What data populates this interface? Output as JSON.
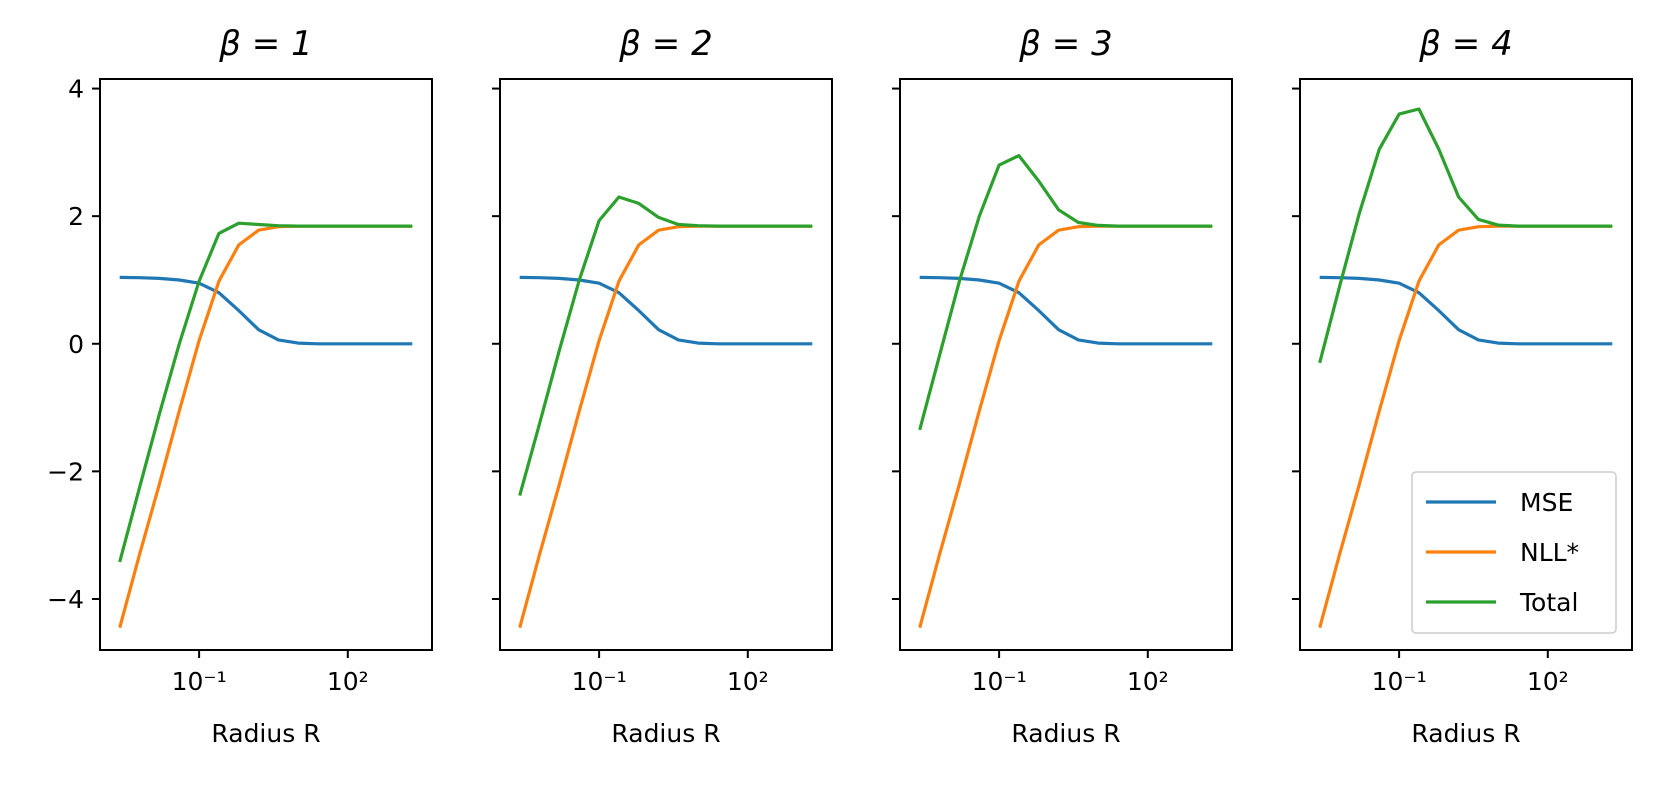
{
  "chart_data": [
    {
      "type": "line",
      "title": "β = 1",
      "xlabel": "Radius R",
      "x_scale": "log",
      "xlim": [
        0.001,
        5000
      ],
      "ylim": [
        -4.8,
        4.15
      ],
      "x_ticks": [
        {
          "value": 0.1,
          "label": "10⁻¹"
        },
        {
          "value": 100,
          "label": "10²"
        }
      ],
      "y_ticks": [
        {
          "value": 4,
          "label": "4"
        },
        {
          "value": 2,
          "label": "2"
        },
        {
          "value": 0,
          "label": "0"
        },
        {
          "value": -2,
          "label": "−2"
        },
        {
          "value": -4,
          "label": "−4"
        }
      ],
      "show_y_tick_labels": true,
      "x": [
        0.0025,
        0.0063,
        0.0158,
        0.0398,
        0.1,
        0.251,
        0.631,
        1.585,
        3.98,
        10,
        25.1,
        63.1,
        158.5,
        398,
        1000,
        2000
      ],
      "series": [
        {
          "name": "MSE",
          "color": "#1f77b4",
          "values": [
            1.04,
            1.035,
            1.025,
            1.0,
            0.95,
            0.8,
            0.52,
            0.22,
            0.06,
            0.01,
            0.0,
            0.0,
            0.0,
            0.0,
            0.0,
            0.0
          ]
        },
        {
          "name": "NLL*",
          "color": "#ff7f0e",
          "values": [
            -4.45,
            -3.3,
            -2.2,
            -1.05,
            0.05,
            0.98,
            1.55,
            1.78,
            1.835,
            1.845,
            1.845,
            1.845,
            1.845,
            1.845,
            1.845,
            1.845
          ]
        },
        {
          "name": "Total",
          "color": "#2ca02c",
          "values": [
            -3.42,
            -2.25,
            -1.1,
            0.0,
            0.98,
            1.73,
            1.89,
            1.87,
            1.85,
            1.845,
            1.845,
            1.845,
            1.845,
            1.845,
            1.845,
            1.845
          ]
        }
      ]
    },
    {
      "type": "line",
      "title": "β = 2",
      "xlabel": "Radius R",
      "x_scale": "log",
      "xlim": [
        0.001,
        5000
      ],
      "ylim": [
        -4.8,
        4.15
      ],
      "x_ticks": [
        {
          "value": 0.1,
          "label": "10⁻¹"
        },
        {
          "value": 100,
          "label": "10²"
        }
      ],
      "y_ticks": [
        {
          "value": 4,
          "label": "4"
        },
        {
          "value": 2,
          "label": "2"
        },
        {
          "value": 0,
          "label": "0"
        },
        {
          "value": -2,
          "label": "−2"
        },
        {
          "value": -4,
          "label": "−4"
        }
      ],
      "show_y_tick_labels": false,
      "x": [
        0.0025,
        0.0063,
        0.0158,
        0.0398,
        0.1,
        0.251,
        0.631,
        1.585,
        3.98,
        10,
        25.1,
        63.1,
        158.5,
        398,
        1000,
        2000
      ],
      "series": [
        {
          "name": "MSE",
          "color": "#1f77b4",
          "values": [
            1.04,
            1.035,
            1.025,
            1.0,
            0.95,
            0.8,
            0.52,
            0.22,
            0.06,
            0.01,
            0.0,
            0.0,
            0.0,
            0.0,
            0.0,
            0.0
          ]
        },
        {
          "name": "NLL*",
          "color": "#ff7f0e",
          "values": [
            -4.45,
            -3.3,
            -2.2,
            -1.05,
            0.05,
            0.98,
            1.55,
            1.78,
            1.835,
            1.845,
            1.845,
            1.845,
            1.845,
            1.845,
            1.845,
            1.845
          ]
        },
        {
          "name": "Total",
          "color": "#2ca02c",
          "values": [
            -2.38,
            -1.25,
            -0.1,
            1.0,
            1.93,
            2.3,
            2.2,
            1.98,
            1.87,
            1.85,
            1.845,
            1.845,
            1.845,
            1.845,
            1.845,
            1.845
          ]
        }
      ]
    },
    {
      "type": "line",
      "title": "β = 3",
      "xlabel": "Radius R",
      "x_scale": "log",
      "xlim": [
        0.001,
        5000
      ],
      "ylim": [
        -4.8,
        4.15
      ],
      "x_ticks": [
        {
          "value": 0.1,
          "label": "10⁻¹"
        },
        {
          "value": 100,
          "label": "10²"
        }
      ],
      "y_ticks": [
        {
          "value": 4,
          "label": "4"
        },
        {
          "value": 2,
          "label": "2"
        },
        {
          "value": 0,
          "label": "0"
        },
        {
          "value": -2,
          "label": "−2"
        },
        {
          "value": -4,
          "label": "−4"
        }
      ],
      "show_y_tick_labels": false,
      "x": [
        0.0025,
        0.0063,
        0.0158,
        0.0398,
        0.1,
        0.251,
        0.631,
        1.585,
        3.98,
        10,
        25.1,
        63.1,
        158.5,
        398,
        1000,
        2000
      ],
      "series": [
        {
          "name": "MSE",
          "color": "#1f77b4",
          "values": [
            1.04,
            1.035,
            1.025,
            1.0,
            0.95,
            0.8,
            0.52,
            0.22,
            0.06,
            0.01,
            0.0,
            0.0,
            0.0,
            0.0,
            0.0,
            0.0
          ]
        },
        {
          "name": "NLL*",
          "color": "#ff7f0e",
          "values": [
            -4.45,
            -3.3,
            -2.2,
            -1.05,
            0.05,
            0.98,
            1.55,
            1.78,
            1.835,
            1.845,
            1.845,
            1.845,
            1.845,
            1.845,
            1.845,
            1.845
          ]
        },
        {
          "name": "Total",
          "color": "#2ca02c",
          "values": [
            -1.35,
            -0.18,
            0.98,
            2.0,
            2.8,
            2.95,
            2.55,
            2.1,
            1.9,
            1.855,
            1.845,
            1.845,
            1.845,
            1.845,
            1.845,
            1.845
          ]
        }
      ]
    },
    {
      "type": "line",
      "title": "β = 4",
      "xlabel": "Radius R",
      "x_scale": "log",
      "xlim": [
        0.001,
        5000
      ],
      "ylim": [
        -4.8,
        4.15
      ],
      "x_ticks": [
        {
          "value": 0.1,
          "label": "10⁻¹"
        },
        {
          "value": 100,
          "label": "10²"
        }
      ],
      "y_ticks": [
        {
          "value": 4,
          "label": "4"
        },
        {
          "value": 2,
          "label": "2"
        },
        {
          "value": 0,
          "label": "0"
        },
        {
          "value": -2,
          "label": "−2"
        },
        {
          "value": -4,
          "label": "−4"
        }
      ],
      "show_y_tick_labels": false,
      "x": [
        0.0025,
        0.0063,
        0.0158,
        0.0398,
        0.1,
        0.251,
        0.631,
        1.585,
        3.98,
        10,
        25.1,
        63.1,
        158.5,
        398,
        1000,
        2000
      ],
      "series": [
        {
          "name": "MSE",
          "color": "#1f77b4",
          "values": [
            1.04,
            1.035,
            1.025,
            1.0,
            0.95,
            0.8,
            0.52,
            0.22,
            0.06,
            0.01,
            0.0,
            0.0,
            0.0,
            0.0,
            0.0,
            0.0
          ]
        },
        {
          "name": "NLL*",
          "color": "#ff7f0e",
          "values": [
            -4.45,
            -3.3,
            -2.2,
            -1.05,
            0.05,
            0.98,
            1.55,
            1.78,
            1.835,
            1.845,
            1.845,
            1.845,
            1.845,
            1.845,
            1.845,
            1.845
          ]
        },
        {
          "name": "Total",
          "color": "#2ca02c",
          "values": [
            -0.3,
            0.9,
            2.05,
            3.05,
            3.6,
            3.68,
            3.05,
            2.3,
            1.95,
            1.86,
            1.845,
            1.845,
            1.845,
            1.845,
            1.845,
            1.845
          ]
        }
      ],
      "legend": {
        "placement": "lower-right",
        "entries": [
          "MSE",
          "NLL*",
          "Total"
        ]
      }
    }
  ]
}
